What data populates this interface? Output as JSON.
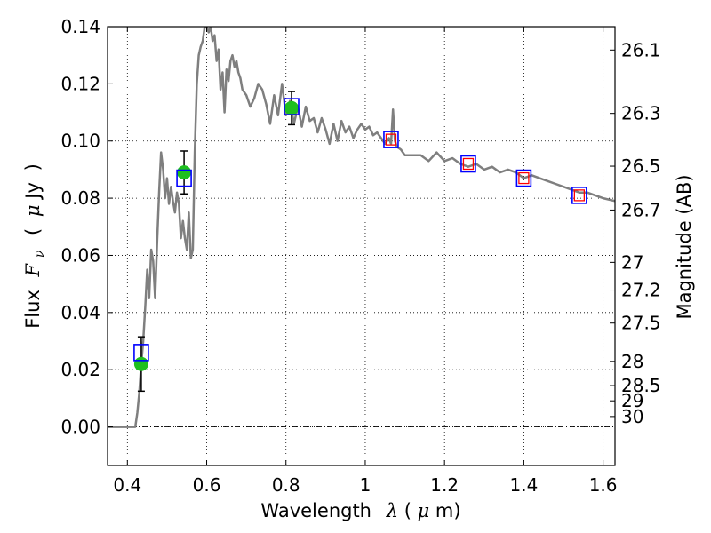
{
  "chart_data": {
    "type": "line",
    "title": "",
    "xlabel": {
      "text": "Wavelength",
      "symbol": "λ",
      "unit_open": " (",
      "unit_mu": "μ",
      "unit_rest": "m)"
    },
    "ylabel": {
      "text": "Flux",
      "symbol": "F",
      "symbol_sub": "ν",
      "unit_open": "(",
      "unit_mu": "μ",
      "unit_rest": "Jy",
      "unit_close": ")"
    },
    "ylabel_right": "Magnitude (AB)",
    "xlim": [
      0.35,
      1.63
    ],
    "ylim": [
      -0.0135,
      0.14
    ],
    "x_ticks": [
      0.4,
      0.6,
      0.8,
      1.0,
      1.2,
      1.4,
      1.6
    ],
    "x_tick_labels": [
      "0.4",
      "0.6",
      "0.8",
      "1",
      "1.2",
      "1.4",
      "1.6"
    ],
    "y_ticks": [
      0.0,
      0.02,
      0.04,
      0.06,
      0.08,
      0.1,
      0.12,
      0.14
    ],
    "y_tick_labels": [
      "0.00",
      "0.02",
      "0.04",
      "0.06",
      "0.08",
      "0.10",
      "0.12",
      "0.14"
    ],
    "mag_ticks": [
      26.1,
      26.3,
      26.5,
      26.7,
      27,
      27.2,
      27.5,
      28,
      28.5,
      29,
      30
    ],
    "mag_tick_labels": [
      "26.1",
      "26.3",
      "26.5",
      "26.7",
      "27",
      "27.2",
      "27.5",
      "28",
      "28.5",
      "29",
      "30"
    ],
    "grid": true,
    "zero_line": true,
    "series": [
      {
        "kind": "model_spectrum",
        "color": "#7f7f7f",
        "x": [
          0.35,
          0.42,
          0.425,
          0.43,
          0.435,
          0.44,
          0.445,
          0.45,
          0.455,
          0.46,
          0.465,
          0.47,
          0.475,
          0.48,
          0.485,
          0.49,
          0.495,
          0.5,
          0.505,
          0.51,
          0.515,
          0.52,
          0.525,
          0.53,
          0.535,
          0.54,
          0.545,
          0.55,
          0.555,
          0.56,
          0.565,
          0.57,
          0.575,
          0.58,
          0.585,
          0.59,
          0.595,
          0.6,
          0.605,
          0.61,
          0.615,
          0.62,
          0.625,
          0.63,
          0.635,
          0.64,
          0.645,
          0.65,
          0.655,
          0.66,
          0.665,
          0.67,
          0.675,
          0.68,
          0.685,
          0.69,
          0.7,
          0.71,
          0.72,
          0.73,
          0.74,
          0.75,
          0.76,
          0.77,
          0.78,
          0.79,
          0.8,
          0.81,
          0.82,
          0.83,
          0.84,
          0.85,
          0.86,
          0.87,
          0.88,
          0.89,
          0.9,
          0.91,
          0.92,
          0.93,
          0.94,
          0.95,
          0.96,
          0.97,
          0.98,
          0.99,
          1.0,
          1.01,
          1.02,
          1.03,
          1.04,
          1.05,
          1.06,
          1.065,
          1.07,
          1.075,
          1.08,
          1.09,
          1.1,
          1.12,
          1.14,
          1.16,
          1.18,
          1.2,
          1.22,
          1.24,
          1.26,
          1.28,
          1.3,
          1.32,
          1.34,
          1.36,
          1.38,
          1.4,
          1.42,
          1.44,
          1.46,
          1.48,
          1.5,
          1.52,
          1.54,
          1.56,
          1.58,
          1.6,
          1.63
        ],
        "y": [
          0.0,
          0.0,
          0.005,
          0.012,
          0.022,
          0.03,
          0.042,
          0.055,
          0.045,
          0.062,
          0.058,
          0.045,
          0.065,
          0.082,
          0.096,
          0.09,
          0.08,
          0.087,
          0.078,
          0.084,
          0.079,
          0.075,
          0.082,
          0.078,
          0.066,
          0.072,
          0.066,
          0.062,
          0.075,
          0.059,
          0.062,
          0.096,
          0.12,
          0.13,
          0.133,
          0.135,
          0.14,
          0.14,
          0.138,
          0.14,
          0.135,
          0.137,
          0.128,
          0.132,
          0.118,
          0.124,
          0.11,
          0.125,
          0.121,
          0.128,
          0.13,
          0.126,
          0.128,
          0.124,
          0.122,
          0.118,
          0.116,
          0.112,
          0.115,
          0.12,
          0.118,
          0.113,
          0.106,
          0.116,
          0.109,
          0.12,
          0.109,
          0.114,
          0.106,
          0.112,
          0.105,
          0.112,
          0.107,
          0.108,
          0.103,
          0.108,
          0.104,
          0.099,
          0.106,
          0.1,
          0.107,
          0.103,
          0.105,
          0.101,
          0.104,
          0.106,
          0.104,
          0.105,
          0.102,
          0.103,
          0.101,
          0.099,
          0.101,
          0.099,
          0.111,
          0.1,
          0.098,
          0.097,
          0.095,
          0.095,
          0.095,
          0.093,
          0.096,
          0.093,
          0.094,
          0.092,
          0.091,
          0.092,
          0.09,
          0.091,
          0.089,
          0.09,
          0.089,
          0.087,
          0.088,
          0.087,
          0.086,
          0.085,
          0.084,
          0.083,
          0.082,
          0.082,
          0.081,
          0.08,
          0.079
        ]
      },
      {
        "kind": "observed_photometry",
        "marker": "circle",
        "color": "#1fbf1f",
        "error_color": "#000000",
        "points": [
          {
            "x": 0.435,
            "y": 0.022,
            "err": 0.0095
          },
          {
            "x": 0.543,
            "y": 0.089,
            "err": 0.0075
          },
          {
            "x": 0.814,
            "y": 0.1115,
            "err": 0.0058
          }
        ]
      },
      {
        "kind": "model_photometry",
        "marker": "square",
        "color": "#0000ff",
        "points": [
          {
            "x": 0.435,
            "y": 0.026
          },
          {
            "x": 0.543,
            "y": 0.087
          },
          {
            "x": 0.814,
            "y": 0.112
          },
          {
            "x": 1.065,
            "y": 0.1005
          },
          {
            "x": 1.26,
            "y": 0.092
          },
          {
            "x": 1.4,
            "y": 0.087
          },
          {
            "x": 1.54,
            "y": 0.081
          }
        ]
      },
      {
        "kind": "upper_limit_markers",
        "marker": "square",
        "color": "#ff0000",
        "points": [
          {
            "x": 1.065,
            "y": 0.1005
          },
          {
            "x": 1.26,
            "y": 0.092
          },
          {
            "x": 1.4,
            "y": 0.087
          },
          {
            "x": 1.54,
            "y": 0.081
          }
        ]
      }
    ]
  }
}
